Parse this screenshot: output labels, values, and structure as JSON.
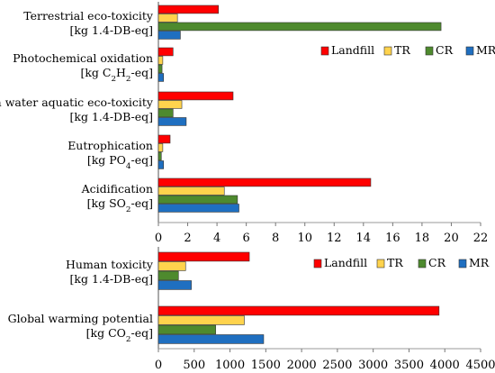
{
  "chart_data": [
    {
      "type": "bar",
      "orientation": "horizontal",
      "categories": [
        {
          "name": "Terrestrial eco-toxicity",
          "unit": "[kg 1.4-DB-eq]"
        },
        {
          "name": "Photochemical oxidation",
          "unit": "[kg C₂H₂-eq]"
        },
        {
          "name": "Fresh water aquatic eco-toxicity",
          "unit": "[kg 1.4-DB-eq]"
        },
        {
          "name": "Eutrophication",
          "unit": "[kg PO₄-eq]"
        },
        {
          "name": "Acidification",
          "unit": "[kg SO₂-eq]"
        }
      ],
      "series": [
        {
          "name": "Landfill",
          "color": "#FF0000",
          "values": [
            4.1,
            1.0,
            5.1,
            0.8,
            14.5
          ]
        },
        {
          "name": "TR",
          "color": "#FFD34D",
          "values": [
            1.3,
            0.3,
            1.6,
            0.3,
            4.5
          ]
        },
        {
          "name": "CR",
          "color": "#4E8A2E",
          "values": [
            19.3,
            0.25,
            1.0,
            0.2,
            5.4
          ]
        },
        {
          "name": "MR",
          "color": "#1F6FC0",
          "values": [
            1.5,
            0.35,
            1.9,
            0.35,
            5.5
          ]
        }
      ],
      "xlim": [
        0,
        22
      ],
      "xticks": [
        0,
        2,
        4,
        6,
        8,
        10,
        12,
        14,
        16,
        18,
        20,
        22
      ],
      "legend": "right, upper part of plot",
      "title": "",
      "xlabel": "",
      "ylabel": ""
    },
    {
      "type": "bar",
      "orientation": "horizontal",
      "categories": [
        {
          "name": "Human toxicity",
          "unit": "[kg 1.4-DB-eq]"
        },
        {
          "name": "Global warming potential",
          "unit": "[kg CO₂-eq]"
        }
      ],
      "series": [
        {
          "name": "Landfill",
          "color": "#FF0000",
          "values": [
            1270,
            3920
          ]
        },
        {
          "name": "TR",
          "color": "#FFD34D",
          "values": [
            380,
            1200
          ]
        },
        {
          "name": "CR",
          "color": "#4E8A2E",
          "values": [
            280,
            800
          ]
        },
        {
          "name": "MR",
          "color": "#1F6FC0",
          "values": [
            460,
            1470
          ]
        }
      ],
      "xlim": [
        0,
        4500
      ],
      "xticks": [
        0,
        500,
        1000,
        1500,
        2000,
        2500,
        3000,
        3500,
        4000,
        4500
      ],
      "legend": "top-right",
      "title": "",
      "xlabel": "",
      "ylabel": ""
    }
  ]
}
